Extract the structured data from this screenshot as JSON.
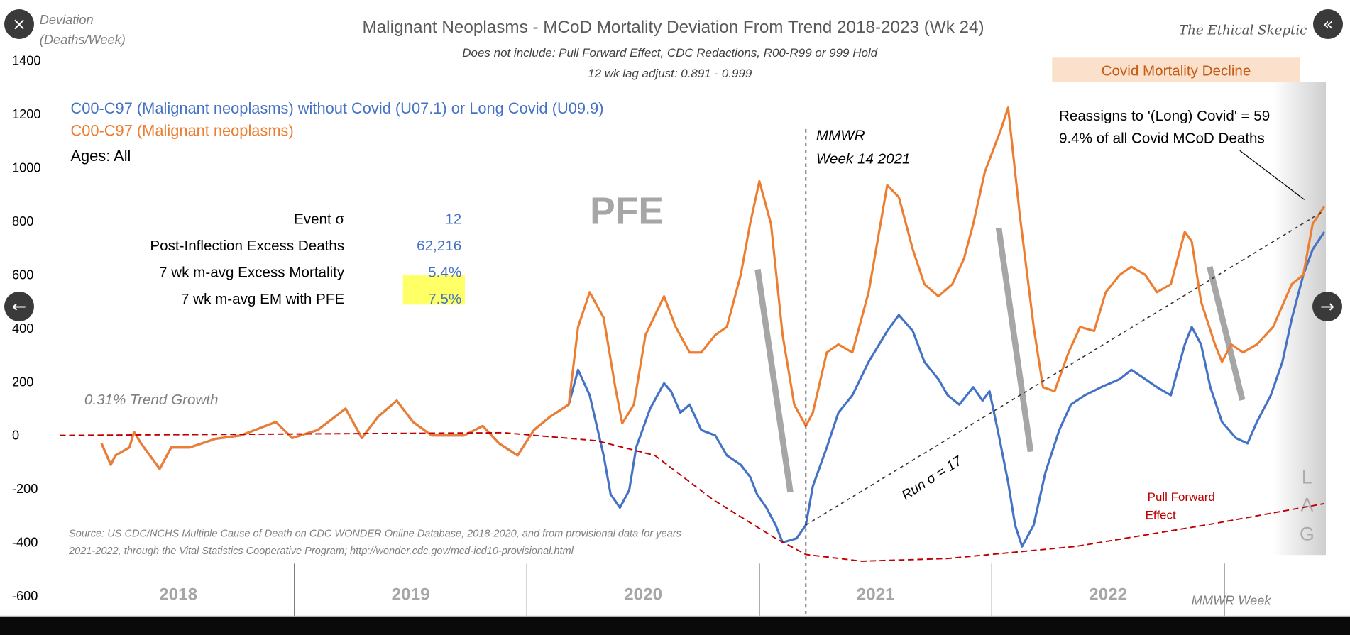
{
  "viewer": {
    "close_icon": "×",
    "prev_icon": "←",
    "next_icon": "→",
    "collapse_icon": "«"
  },
  "watermark": "The Ethical Skeptic",
  "colors": {
    "blue": "#4472c4",
    "orange": "#ed7d31",
    "pull_forward": "#c00000",
    "highlight": "#ffff66",
    "band": "#fbe0cc"
  },
  "chart_data": {
    "type": "line",
    "title": "Malignant Neoplasms - MCoD Mortality Deviation  From Trend  2018-2023 (Wk 24)",
    "subtitle1": "Does not include: Pull Forward Effect,  CDC Redactions, R00-R99 or 999 Hold",
    "subtitle2": "12 wk lag adjust: 0.891 - 0.999",
    "ylabel1": "Deviation",
    "ylabel2": "(Deaths/Week)",
    "xlabel": "MMWR Week",
    "ylim": [
      -600,
      1400
    ],
    "yticks": [
      "1400",
      "1200",
      "1000",
      "800",
      "600",
      "400",
      "200",
      "0",
      "-200",
      "-400",
      "-600"
    ],
    "xcategories": [
      "2018",
      "2019",
      "2020",
      "2021",
      "2022"
    ],
    "xlim": [
      2018,
      2023.45
    ],
    "legend": {
      "blue": "C00-C97 (Malignant neoplasms) without Covid (U07.1) or Long Covid (U09.9)",
      "orange": "C00-C97 (Malignant neoplasms)",
      "ages": "Ages: All"
    },
    "stats": [
      {
        "label": "Event σ",
        "value": "12"
      },
      {
        "label": "Post-Inflection Excess Deaths",
        "value": "62,216"
      },
      {
        "label": "7 wk m-avg Excess Mortality",
        "value": "5.4%"
      },
      {
        "label": "7 wk m-avg EM with PFE",
        "value": "7.5%",
        "highlight": true
      }
    ],
    "annotations": {
      "pfe": "PFE",
      "trend_growth": "0.31% Trend Growth",
      "mmwr1": "MMWR",
      "mmwr2": "Week 14 2021",
      "run": "Run σ = 17",
      "covid_decline": "Covid Mortality Decline",
      "reassign1": "Reassigns to '(Long) Covid' = 59",
      "reassign2": "9.4% of all Covid MCoD Deaths",
      "pull1": "Pull Forward",
      "pull2": "Effect",
      "lag": [
        "L",
        "A",
        "G"
      ],
      "source1": "Source: US CDC/NCHS Multiple Cause of Death on CDC WONDER Online Database, 2018-2020, and from provisional data for years",
      "source2": "2021-2022, through the Vital Statistics Cooperative Program; http://wonder.cdc.gov/mcd-icd10-provisional.html"
    },
    "inflection_x": 2021.2,
    "series": [
      {
        "name": "C00-C97 (Malignant neoplasms) without Covid (U07.1) or Long Covid (U09.9)",
        "color": "#4472c4",
        "points": [
          [
            2018.17,
            -30
          ],
          [
            2018.21,
            -110
          ],
          [
            2018.23,
            -75
          ],
          [
            2018.29,
            -45
          ],
          [
            2018.31,
            13
          ],
          [
            2018.34,
            -30
          ],
          [
            2018.42,
            -125
          ],
          [
            2018.47,
            -45
          ],
          [
            2018.55,
            -45
          ],
          [
            2018.66,
            -13
          ],
          [
            2018.77,
            0
          ],
          [
            2018.92,
            50
          ],
          [
            2018.99,
            -10
          ],
          [
            2019.1,
            20
          ],
          [
            2019.22,
            100
          ],
          [
            2019.29,
            -10
          ],
          [
            2019.36,
            70
          ],
          [
            2019.44,
            130
          ],
          [
            2019.51,
            50
          ],
          [
            2019.59,
            0
          ],
          [
            2019.73,
            0
          ],
          [
            2019.81,
            35
          ],
          [
            2019.88,
            -30
          ],
          [
            2019.96,
            -75
          ],
          [
            2020.03,
            20
          ],
          [
            2020.1,
            70
          ],
          [
            2020.18,
            115
          ],
          [
            2020.22,
            245
          ],
          [
            2020.27,
            150
          ],
          [
            2020.33,
            -75
          ],
          [
            2020.36,
            -220
          ],
          [
            2020.4,
            -270
          ],
          [
            2020.44,
            -205
          ],
          [
            2020.47,
            -45
          ],
          [
            2020.53,
            100
          ],
          [
            2020.59,
            195
          ],
          [
            2020.62,
            165
          ],
          [
            2020.66,
            85
          ],
          [
            2020.7,
            115
          ],
          [
            2020.75,
            20
          ],
          [
            2020.81,
            0
          ],
          [
            2020.86,
            -75
          ],
          [
            2020.92,
            -110
          ],
          [
            2020.96,
            -155
          ],
          [
            2020.99,
            -220
          ],
          [
            2021.03,
            -270
          ],
          [
            2021.07,
            -335
          ],
          [
            2021.1,
            -400
          ],
          [
            2021.16,
            -385
          ],
          [
            2021.2,
            -335
          ],
          [
            2021.23,
            -190
          ],
          [
            2021.29,
            -45
          ],
          [
            2021.34,
            85
          ],
          [
            2021.4,
            150
          ],
          [
            2021.47,
            275
          ],
          [
            2021.55,
            390
          ],
          [
            2021.6,
            450
          ],
          [
            2021.66,
            390
          ],
          [
            2021.71,
            275
          ],
          [
            2021.77,
            210
          ],
          [
            2021.81,
            150
          ],
          [
            2021.86,
            115
          ],
          [
            2021.92,
            180
          ],
          [
            2021.96,
            130
          ],
          [
            2021.99,
            165
          ],
          [
            2022.03,
            0
          ],
          [
            2022.07,
            -175
          ],
          [
            2022.1,
            -335
          ],
          [
            2022.13,
            -415
          ],
          [
            2022.18,
            -335
          ],
          [
            2022.23,
            -140
          ],
          [
            2022.29,
            20
          ],
          [
            2022.34,
            115
          ],
          [
            2022.4,
            150
          ],
          [
            2022.47,
            180
          ],
          [
            2022.55,
            210
          ],
          [
            2022.6,
            245
          ],
          [
            2022.66,
            210
          ],
          [
            2022.71,
            180
          ],
          [
            2022.77,
            150
          ],
          [
            2022.83,
            340
          ],
          [
            2022.86,
            405
          ],
          [
            2022.9,
            340
          ],
          [
            2022.94,
            180
          ],
          [
            2022.99,
            50
          ],
          [
            2023.05,
            -10
          ],
          [
            2023.1,
            -30
          ],
          [
            2023.14,
            50
          ],
          [
            2023.2,
            150
          ],
          [
            2023.25,
            275
          ],
          [
            2023.29,
            435
          ],
          [
            2023.34,
            600
          ],
          [
            2023.38,
            695
          ],
          [
            2023.43,
            760
          ]
        ]
      },
      {
        "name": "C00-C97 (Malignant neoplasms)",
        "color": "#ed7d31",
        "points": [
          [
            2020.18,
            115
          ],
          [
            2020.22,
            405
          ],
          [
            2020.27,
            535
          ],
          [
            2020.33,
            440
          ],
          [
            2020.38,
            180
          ],
          [
            2020.41,
            45
          ],
          [
            2020.46,
            115
          ],
          [
            2020.51,
            375
          ],
          [
            2020.59,
            520
          ],
          [
            2020.64,
            405
          ],
          [
            2020.7,
            310
          ],
          [
            2020.75,
            310
          ],
          [
            2020.81,
            375
          ],
          [
            2020.86,
            405
          ],
          [
            2020.92,
            600
          ],
          [
            2020.96,
            790
          ],
          [
            2021.0,
            950
          ],
          [
            2021.05,
            790
          ],
          [
            2021.1,
            375
          ],
          [
            2021.15,
            115
          ],
          [
            2021.2,
            35
          ],
          [
            2021.23,
            85
          ],
          [
            2021.29,
            310
          ],
          [
            2021.34,
            340
          ],
          [
            2021.4,
            310
          ],
          [
            2021.47,
            535
          ],
          [
            2021.55,
            935
          ],
          [
            2021.6,
            890
          ],
          [
            2021.66,
            695
          ],
          [
            2021.71,
            565
          ],
          [
            2021.77,
            520
          ],
          [
            2021.83,
            565
          ],
          [
            2021.88,
            660
          ],
          [
            2021.92,
            790
          ],
          [
            2021.97,
            985
          ],
          [
            2022.04,
            1145
          ],
          [
            2022.07,
            1225
          ],
          [
            2022.12,
            825
          ],
          [
            2022.18,
            405
          ],
          [
            2022.22,
            180
          ],
          [
            2022.27,
            165
          ],
          [
            2022.33,
            310
          ],
          [
            2022.38,
            405
          ],
          [
            2022.44,
            390
          ],
          [
            2022.49,
            535
          ],
          [
            2022.55,
            600
          ],
          [
            2022.6,
            630
          ],
          [
            2022.66,
            600
          ],
          [
            2022.71,
            535
          ],
          [
            2022.77,
            565
          ],
          [
            2022.83,
            760
          ],
          [
            2022.86,
            725
          ],
          [
            2022.9,
            500
          ],
          [
            2022.96,
            340
          ],
          [
            2022.99,
            275
          ],
          [
            2023.03,
            340
          ],
          [
            2023.08,
            310
          ],
          [
            2023.14,
            340
          ],
          [
            2023.21,
            405
          ],
          [
            2023.29,
            565
          ],
          [
            2023.34,
            600
          ],
          [
            2023.38,
            790
          ],
          [
            2023.43,
            855
          ]
        ]
      },
      {
        "name": "Pull Forward Effect",
        "color": "#c00000",
        "dashed": true,
        "points": [
          [
            2017.99,
            0
          ],
          [
            2019.9,
            10
          ],
          [
            2020.3,
            -20
          ],
          [
            2020.55,
            -75
          ],
          [
            2020.8,
            -240
          ],
          [
            2021.07,
            -385
          ],
          [
            2021.2,
            -445
          ],
          [
            2021.44,
            -470
          ],
          [
            2021.81,
            -460
          ],
          [
            2022.36,
            -415
          ],
          [
            2022.92,
            -335
          ],
          [
            2023.43,
            -255
          ]
        ]
      },
      {
        "color": "#333333",
        "dashed": true,
        "points": [
          [
            2021.2,
            -335
          ],
          [
            2023.43,
            840
          ]
        ]
      }
    ]
  }
}
